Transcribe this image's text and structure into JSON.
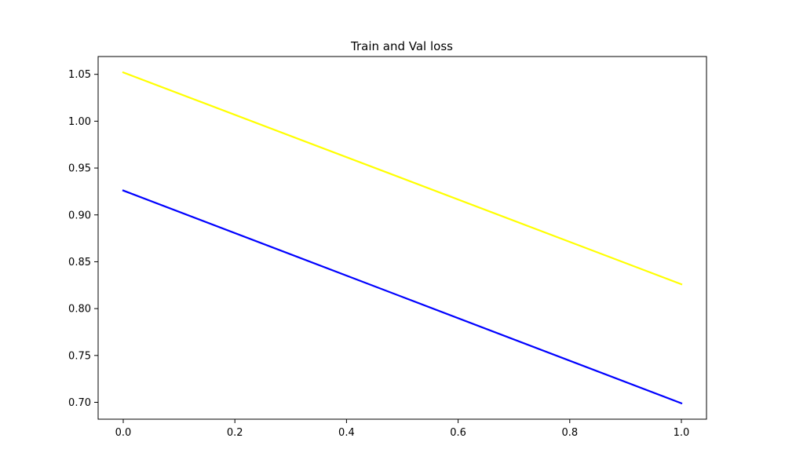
{
  "chart_data": {
    "type": "line",
    "title": "Train and Val loss",
    "xlabel": "",
    "ylabel": "",
    "xlim": [
      -0.045,
      1.045
    ],
    "ylim": [
      0.682,
      1.069
    ],
    "x_ticks": [
      0.0,
      0.2,
      0.4,
      0.6,
      0.8,
      1.0
    ],
    "x_tick_labels": [
      "0.0",
      "0.2",
      "0.4",
      "0.6",
      "0.8",
      "1.0"
    ],
    "y_ticks": [
      0.7,
      0.75,
      0.8,
      0.85,
      0.9,
      0.95,
      1.0,
      1.05
    ],
    "y_tick_labels": [
      "0.70",
      "0.75",
      "0.80",
      "0.85",
      "0.90",
      "0.95",
      "1.00",
      "1.05"
    ],
    "grid": false,
    "series": [
      {
        "x": [
          0,
          1
        ],
        "values": [
          1.052,
          0.826
        ],
        "color": "#ffff00"
      },
      {
        "x": [
          0,
          1
        ],
        "values": [
          0.926,
          0.699
        ],
        "color": "#0000ff"
      }
    ]
  }
}
